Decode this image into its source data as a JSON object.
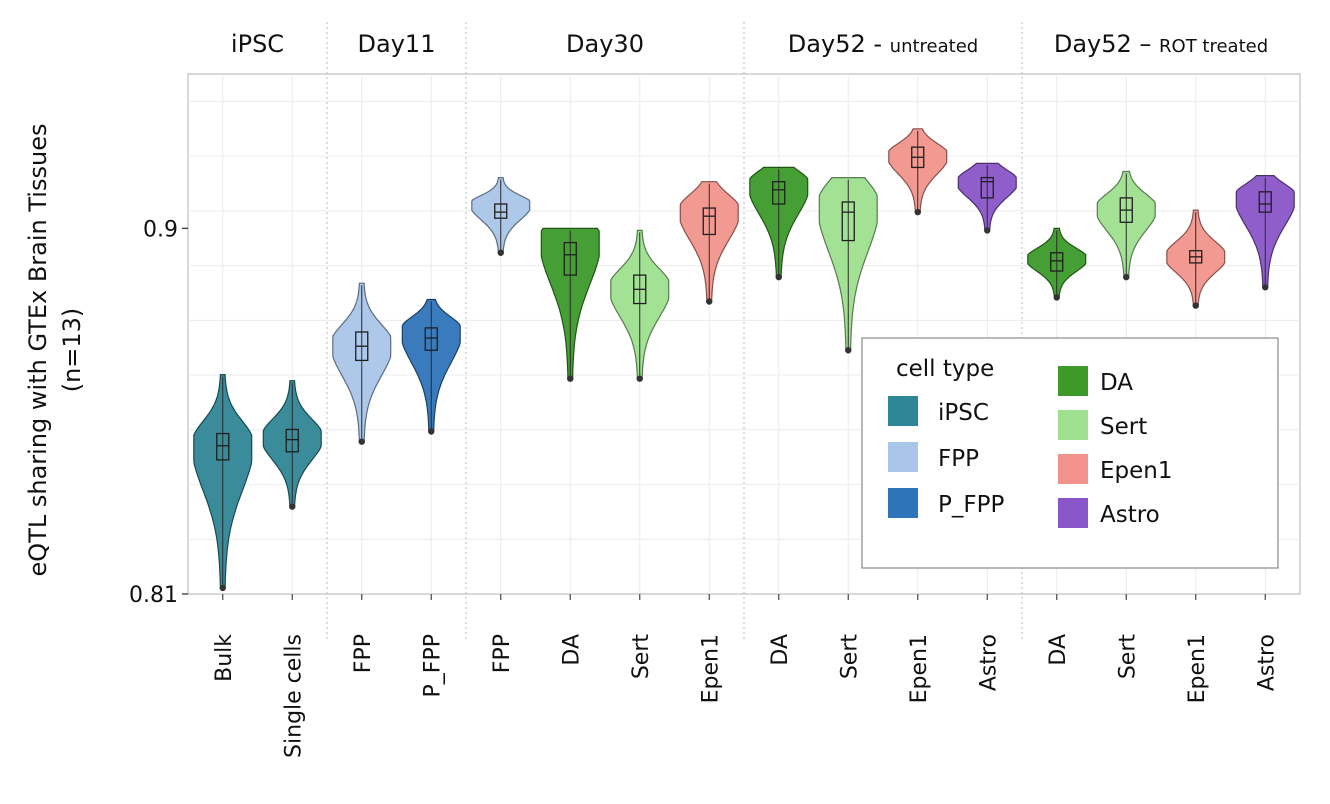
{
  "chart_data": {
    "type": "violin",
    "ylabel_line1": "eQTL sharing with GTEx Brain Tissues",
    "ylabel_line2": "(n=13)",
    "yticks": [
      {
        "value": 0.9,
        "label": "0.9"
      },
      {
        "value": 0.81,
        "label": "0.81"
      }
    ],
    "ylim": [
      0.81,
      0.938
    ],
    "grid": true,
    "groups": [
      {
        "label": "iPSC",
        "sub": "",
        "n": 2
      },
      {
        "label": "Day11",
        "sub": "",
        "n": 2
      },
      {
        "label": "Day30",
        "sub": "",
        "n": 4
      },
      {
        "label": "Day52 - ",
        "sub": "untreated",
        "n": 4
      },
      {
        "label": "Day52 – ",
        "sub": "ROT treated",
        "n": 4
      }
    ],
    "violins": [
      {
        "label": "Bulk",
        "type": "iPSC",
        "min": 0.8115,
        "q1": 0.843,
        "median": 0.8465,
        "q3": 0.8495,
        "max": 0.864,
        "mode": 0.847
      },
      {
        "label": "Single cells",
        "type": "iPSC",
        "min": 0.8315,
        "q1": 0.845,
        "median": 0.848,
        "q3": 0.8505,
        "max": 0.8625,
        "mode": 0.8485
      },
      {
        "label": "FPP",
        "type": "FPP",
        "min": 0.8475,
        "q1": 0.8675,
        "median": 0.871,
        "q3": 0.8745,
        "max": 0.8865,
        "mode": 0.8715
      },
      {
        "label": "P_FPP",
        "type": "P_FPP",
        "min": 0.85,
        "q1": 0.87,
        "median": 0.873,
        "q3": 0.8755,
        "max": 0.8825,
        "mode": 0.875
      },
      {
        "label": "FPP",
        "type": "FPP",
        "min": 0.894,
        "q1": 0.9025,
        "median": 0.904,
        "q3": 0.906,
        "max": 0.9125,
        "mode": 0.906
      },
      {
        "label": "DA",
        "type": "DA",
        "min": 0.863,
        "q1": 0.8885,
        "median": 0.8935,
        "q3": 0.8965,
        "max": 0.9,
        "mode": 0.8975
      },
      {
        "label": "Sert",
        "type": "Sert",
        "min": 0.863,
        "q1": 0.8815,
        "median": 0.885,
        "q3": 0.8885,
        "max": 0.8995,
        "mode": 0.8855
      },
      {
        "label": "Epen1",
        "type": "Epen1",
        "min": 0.882,
        "q1": 0.8985,
        "median": 0.903,
        "q3": 0.905,
        "max": 0.9115,
        "mode": 0.9045
      },
      {
        "label": "DA",
        "type": "DA",
        "min": 0.888,
        "q1": 0.906,
        "median": 0.9095,
        "q3": 0.9115,
        "max": 0.915,
        "mode": 0.911
      },
      {
        "label": "Sert",
        "type": "Sert",
        "min": 0.87,
        "q1": 0.897,
        "median": 0.904,
        "q3": 0.9065,
        "max": 0.9125,
        "mode": 0.906
      },
      {
        "label": "Epen1",
        "type": "Epen1",
        "min": 0.904,
        "q1": 0.915,
        "median": 0.9175,
        "q3": 0.92,
        "max": 0.9245,
        "mode": 0.918
      },
      {
        "label": "Astro",
        "type": "Astro",
        "min": 0.8995,
        "q1": 0.9075,
        "median": 0.9115,
        "q3": 0.9125,
        "max": 0.916,
        "mode": 0.9115
      },
      {
        "label": "DA",
        "type": "DA",
        "min": 0.883,
        "q1": 0.8895,
        "median": 0.892,
        "q3": 0.894,
        "max": 0.9,
        "mode": 0.8925
      },
      {
        "label": "Sert",
        "type": "Sert",
        "min": 0.888,
        "q1": 0.9015,
        "median": 0.9045,
        "q3": 0.9075,
        "max": 0.914,
        "mode": 0.905
      },
      {
        "label": "Epen1",
        "type": "Epen1",
        "min": 0.881,
        "q1": 0.8915,
        "median": 0.893,
        "q3": 0.8945,
        "max": 0.9045,
        "mode": 0.893
      },
      {
        "label": "Astro",
        "type": "Astro",
        "min": 0.8855,
        "q1": 0.904,
        "median": 0.906,
        "q3": 0.909,
        "max": 0.913,
        "mode": 0.908
      }
    ],
    "legend": {
      "title": "cell type",
      "placement": "bottom-right",
      "items": [
        {
          "name": "iPSC",
          "color": "#2f8696"
        },
        {
          "name": "FPP",
          "color": "#a9c5e8"
        },
        {
          "name": "P_FPP",
          "color": "#2e74b8"
        },
        {
          "name": "DA",
          "color": "#3c9a2a"
        },
        {
          "name": "Sert",
          "color": "#9ee08f"
        },
        {
          "name": "Epen1",
          "color": "#f1938c"
        },
        {
          "name": "Astro",
          "color": "#8a55c8"
        }
      ]
    }
  }
}
